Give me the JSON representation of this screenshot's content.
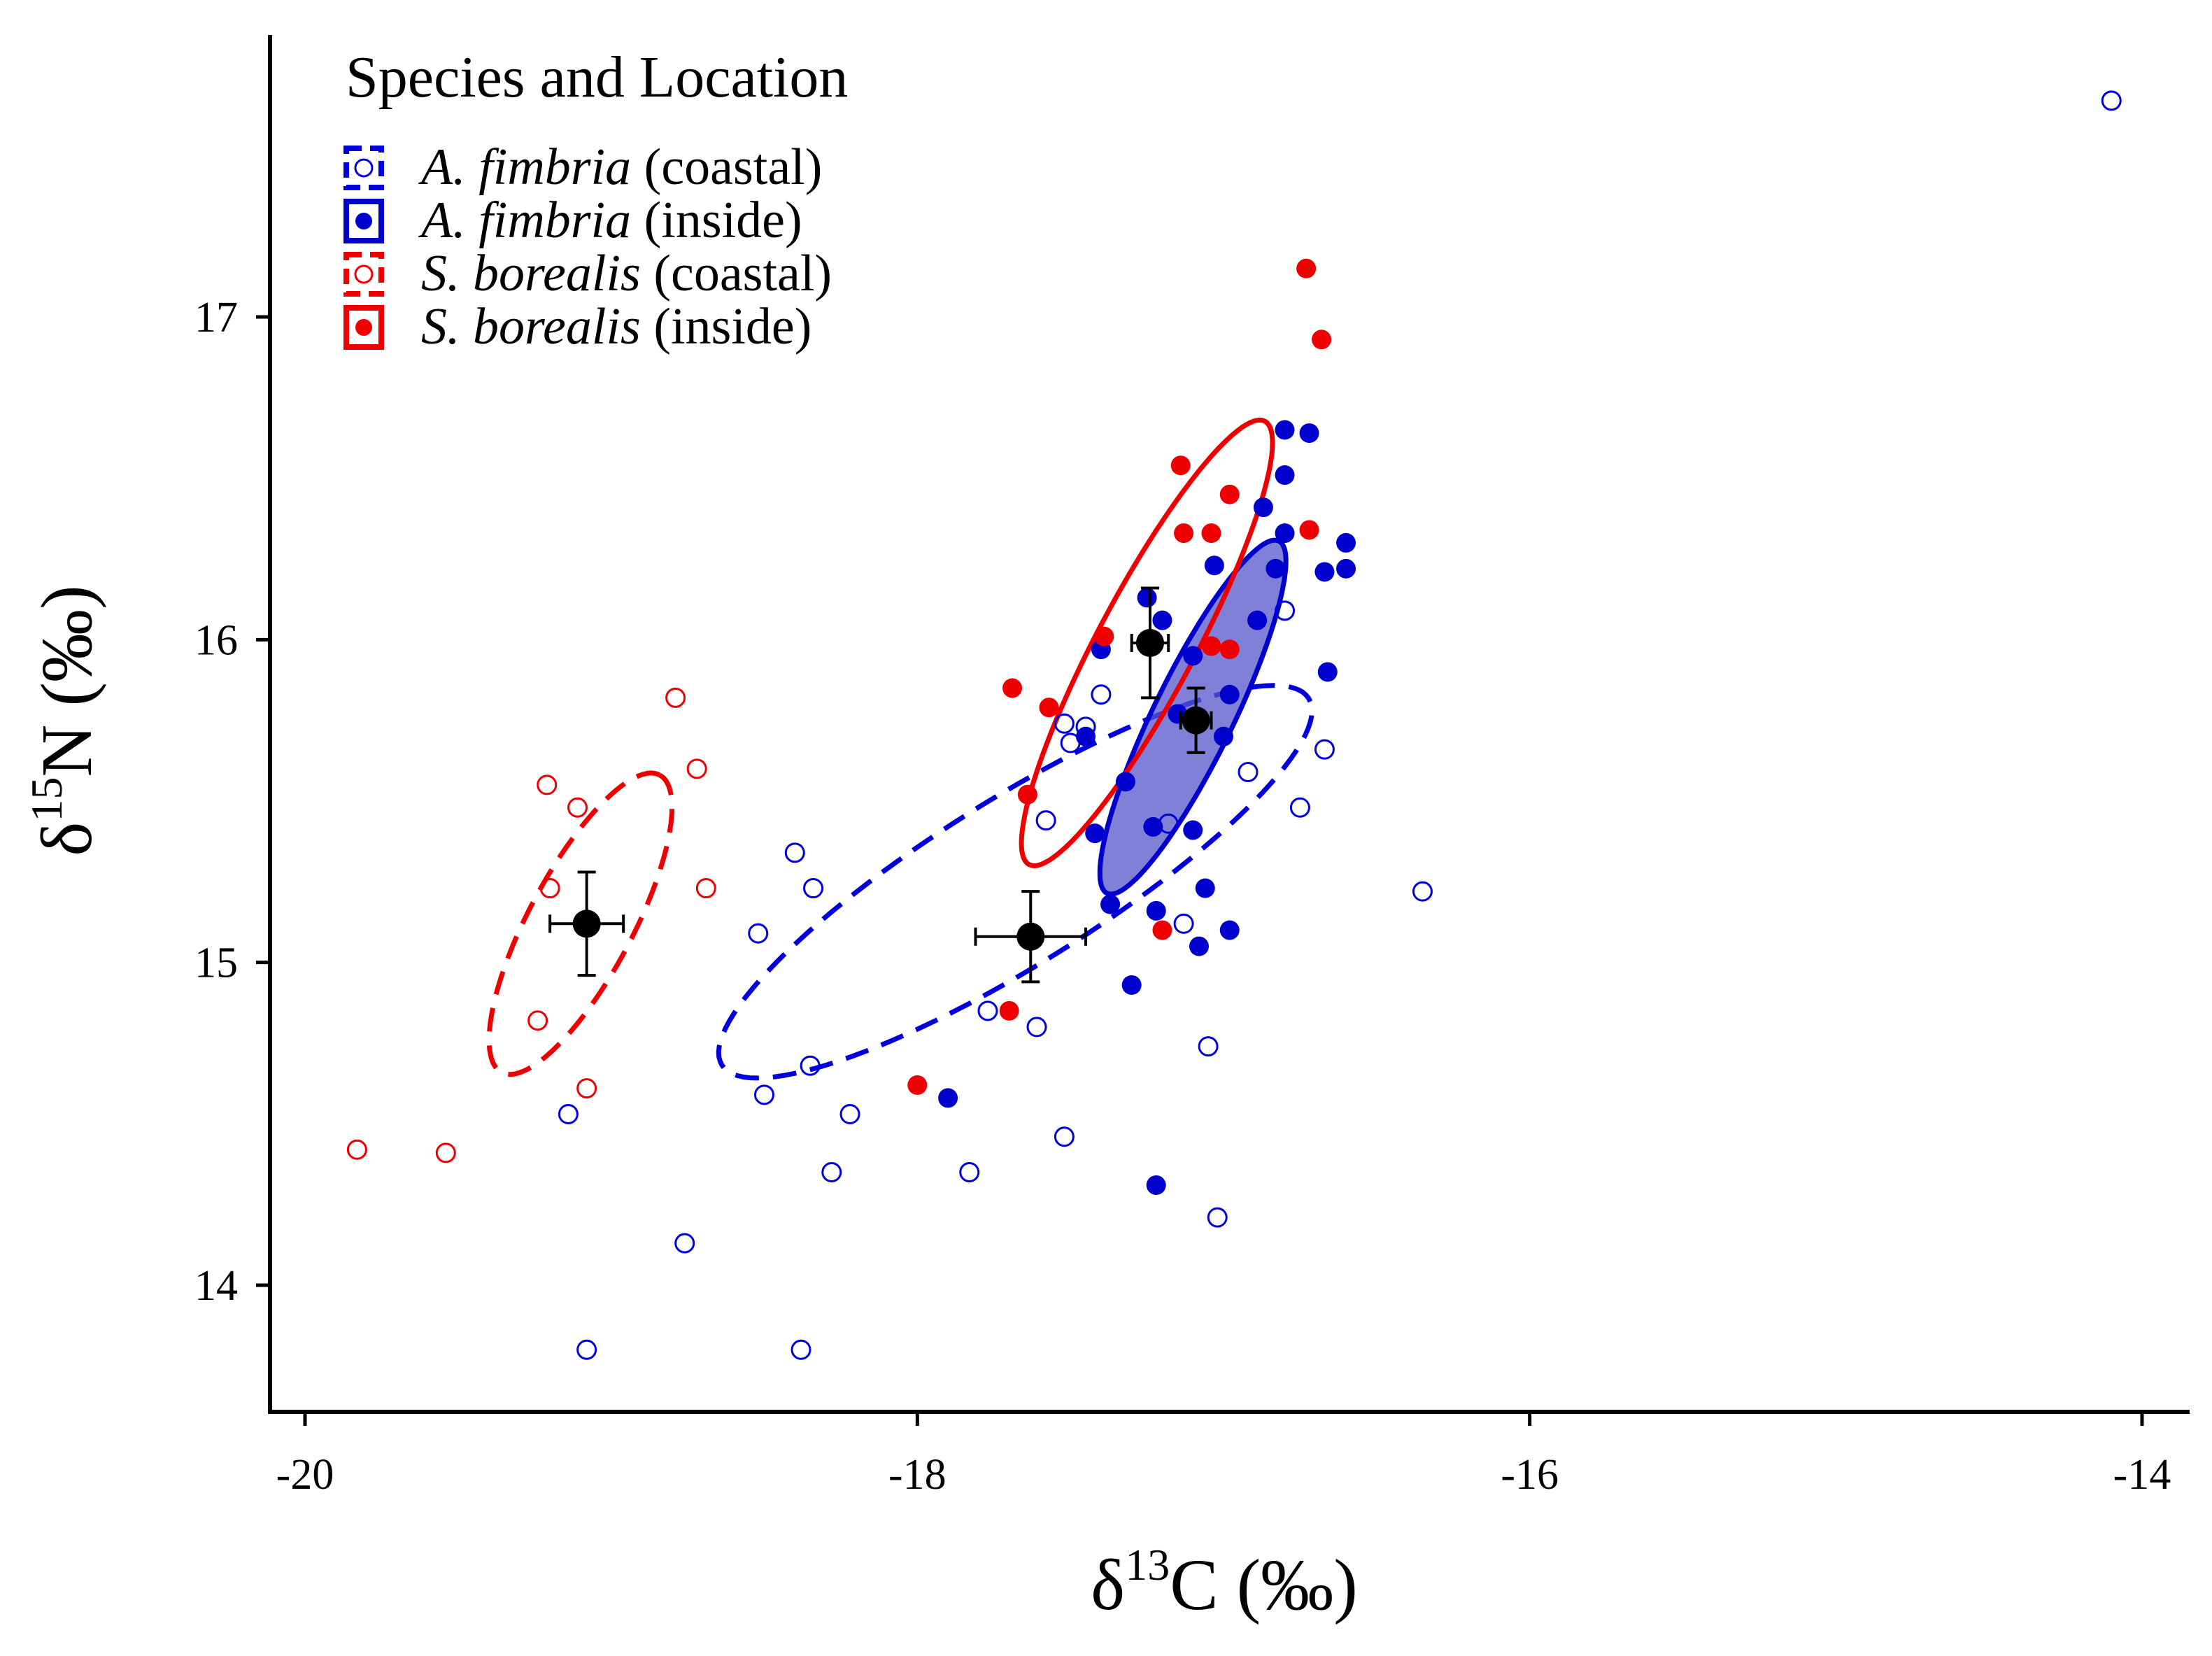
{
  "chart_data": {
    "type": "scatter",
    "title": "",
    "xlabel": "δ13C (‰)",
    "ylabel": "δ15N (‰)",
    "x_axis": {
      "symbol": "δ",
      "superscript": "13",
      "element": "C",
      "unit": "(‰)",
      "ticks": [
        -20,
        -18,
        -16,
        -14
      ],
      "tick_labels": [
        "-20",
        "-18",
        "-16",
        "-14"
      ],
      "range": [
        -20.1,
        -13.85
      ]
    },
    "y_axis": {
      "symbol": "δ",
      "superscript": "15",
      "element": "N",
      "unit": "(‰)",
      "ticks": [
        14,
        15,
        16,
        17
      ],
      "tick_labels": [
        "14",
        "15",
        "16",
        "17"
      ],
      "range": [
        13.62,
        17.92
      ]
    },
    "grid": false,
    "legend": {
      "title": "Species and Location",
      "position": "top-left",
      "entries": [
        {
          "series": "af_coastal",
          "species": "A. fimbria",
          "location": "(coastal)"
        },
        {
          "series": "af_inside",
          "species": "A. fimbria",
          "location": "(inside)"
        },
        {
          "series": "sb_coastal",
          "species": "S. borealis",
          "location": "(coastal)"
        },
        {
          "series": "sb_inside",
          "species": "S. borealis",
          "location": "(inside)"
        }
      ]
    },
    "series": [
      {
        "id": "af_coastal",
        "name": "A. fimbria (coastal)",
        "color": "#0000dd",
        "marker": "open-circle",
        "ellipse": {
          "style": "dashed",
          "filled": false,
          "cx": -17.68,
          "cy": 15.25,
          "semi_major": 1.13,
          "semi_minor": 0.27,
          "angle_deg": 32
        },
        "mean": {
          "x": -17.63,
          "y": 15.08,
          "x_err": 0.18,
          "y_err": 0.14
        },
        "points": [
          [
            -14.1,
            17.67
          ],
          [
            -16.35,
            15.22
          ],
          [
            -16.67,
            15.66
          ],
          [
            -16.75,
            15.48
          ],
          [
            -16.8,
            16.09
          ],
          [
            -16.92,
            15.59
          ],
          [
            -17.05,
            14.74
          ],
          [
            -17.02,
            14.21
          ],
          [
            -17.13,
            15.12
          ],
          [
            -17.18,
            15.43
          ],
          [
            -17.4,
            15.83
          ],
          [
            -17.45,
            15.73
          ],
          [
            -17.5,
            15.68
          ],
          [
            -17.52,
            15.74
          ],
          [
            -17.58,
            15.44
          ],
          [
            -17.52,
            14.46
          ],
          [
            -17.61,
            14.8
          ],
          [
            -17.77,
            14.85
          ],
          [
            -17.83,
            14.35
          ],
          [
            -18.22,
            14.53
          ],
          [
            -18.34,
            15.23
          ],
          [
            -18.35,
            14.68
          ],
          [
            -18.28,
            14.35
          ],
          [
            -18.4,
            15.34
          ],
          [
            -18.52,
            15.09
          ],
          [
            -18.5,
            14.59
          ],
          [
            -18.38,
            13.8
          ],
          [
            -18.76,
            14.13
          ],
          [
            -19.08,
            13.8
          ],
          [
            -19.14,
            14.53
          ]
        ]
      },
      {
        "id": "af_inside",
        "name": "A. fimbria (inside)",
        "color": "#0000cc",
        "marker": "filled-circle",
        "ellipse": {
          "style": "solid",
          "filled": true,
          "fill": "#5555cc",
          "cx": -17.1,
          "cy": 15.76,
          "semi_major": 0.64,
          "semi_minor": 0.13,
          "angle_deg": 64
        },
        "mean": {
          "x": -17.09,
          "y": 15.75,
          "x_err": 0.05,
          "y_err": 0.1
        },
        "points": [
          [
            -16.8,
            16.65
          ],
          [
            -16.72,
            16.64
          ],
          [
            -16.8,
            16.51
          ],
          [
            -16.87,
            16.41
          ],
          [
            -16.6,
            16.3
          ],
          [
            -16.6,
            16.22
          ],
          [
            -16.67,
            16.21
          ],
          [
            -16.83,
            16.22
          ],
          [
            -17.03,
            16.23
          ],
          [
            -16.8,
            16.33
          ],
          [
            -16.89,
            16.06
          ],
          [
            -17.2,
            16.06
          ],
          [
            -17.25,
            16.13
          ],
          [
            -17.4,
            15.97
          ],
          [
            -17.1,
            15.95
          ],
          [
            -16.98,
            15.83
          ],
          [
            -16.66,
            15.9
          ],
          [
            -17.15,
            15.77
          ],
          [
            -17.0,
            15.7
          ],
          [
            -17.32,
            15.56
          ],
          [
            -17.45,
            15.7
          ],
          [
            -17.42,
            15.4
          ],
          [
            -17.23,
            15.42
          ],
          [
            -17.1,
            15.41
          ],
          [
            -17.06,
            15.23
          ],
          [
            -17.22,
            15.16
          ],
          [
            -17.37,
            15.18
          ],
          [
            -16.98,
            15.1
          ],
          [
            -17.08,
            15.05
          ],
          [
            -17.3,
            14.93
          ],
          [
            -17.9,
            14.58
          ],
          [
            -17.22,
            14.31
          ]
        ]
      },
      {
        "id": "sb_coastal",
        "name": "S. borealis (coastal)",
        "color": "#ee0000",
        "marker": "open-circle",
        "ellipse": {
          "style": "dashed",
          "filled": false,
          "cx": -19.1,
          "cy": 15.12,
          "semi_major": 0.55,
          "semi_minor": 0.17,
          "angle_deg": 62
        },
        "mean": {
          "x": -19.08,
          "y": 15.12,
          "x_err": 0.12,
          "y_err": 0.16
        },
        "points": [
          [
            -18.79,
            15.82
          ],
          [
            -18.72,
            15.6
          ],
          [
            -18.69,
            15.23
          ],
          [
            -19.21,
            15.55
          ],
          [
            -19.11,
            15.48
          ],
          [
            -19.2,
            15.23
          ],
          [
            -19.24,
            14.82
          ],
          [
            -19.08,
            14.61
          ],
          [
            -19.54,
            14.41
          ],
          [
            -19.83,
            14.42
          ]
        ]
      },
      {
        "id": "sb_inside",
        "name": "S. borealis (inside)",
        "color": "#ee0000",
        "marker": "filled-circle",
        "ellipse": {
          "style": "solid",
          "filled": false,
          "cx": -17.25,
          "cy": 15.99,
          "semi_major": 0.82,
          "semi_minor": 0.16,
          "angle_deg": 62
        },
        "mean": {
          "x": -17.24,
          "y": 15.99,
          "x_err": 0.06,
          "y_err": 0.17
        },
        "points": [
          [
            -16.73,
            17.15
          ],
          [
            -16.68,
            16.93
          ],
          [
            -17.14,
            16.54
          ],
          [
            -16.98,
            16.45
          ],
          [
            -17.13,
            16.33
          ],
          [
            -17.04,
            16.33
          ],
          [
            -16.72,
            16.34
          ],
          [
            -17.39,
            16.01
          ],
          [
            -17.04,
            15.98
          ],
          [
            -16.98,
            15.97
          ],
          [
            -17.69,
            15.85
          ],
          [
            -17.57,
            15.79
          ],
          [
            -17.64,
            15.52
          ],
          [
            -17.2,
            15.1
          ],
          [
            -17.7,
            14.85
          ],
          [
            -18.0,
            14.62
          ]
        ]
      }
    ]
  }
}
